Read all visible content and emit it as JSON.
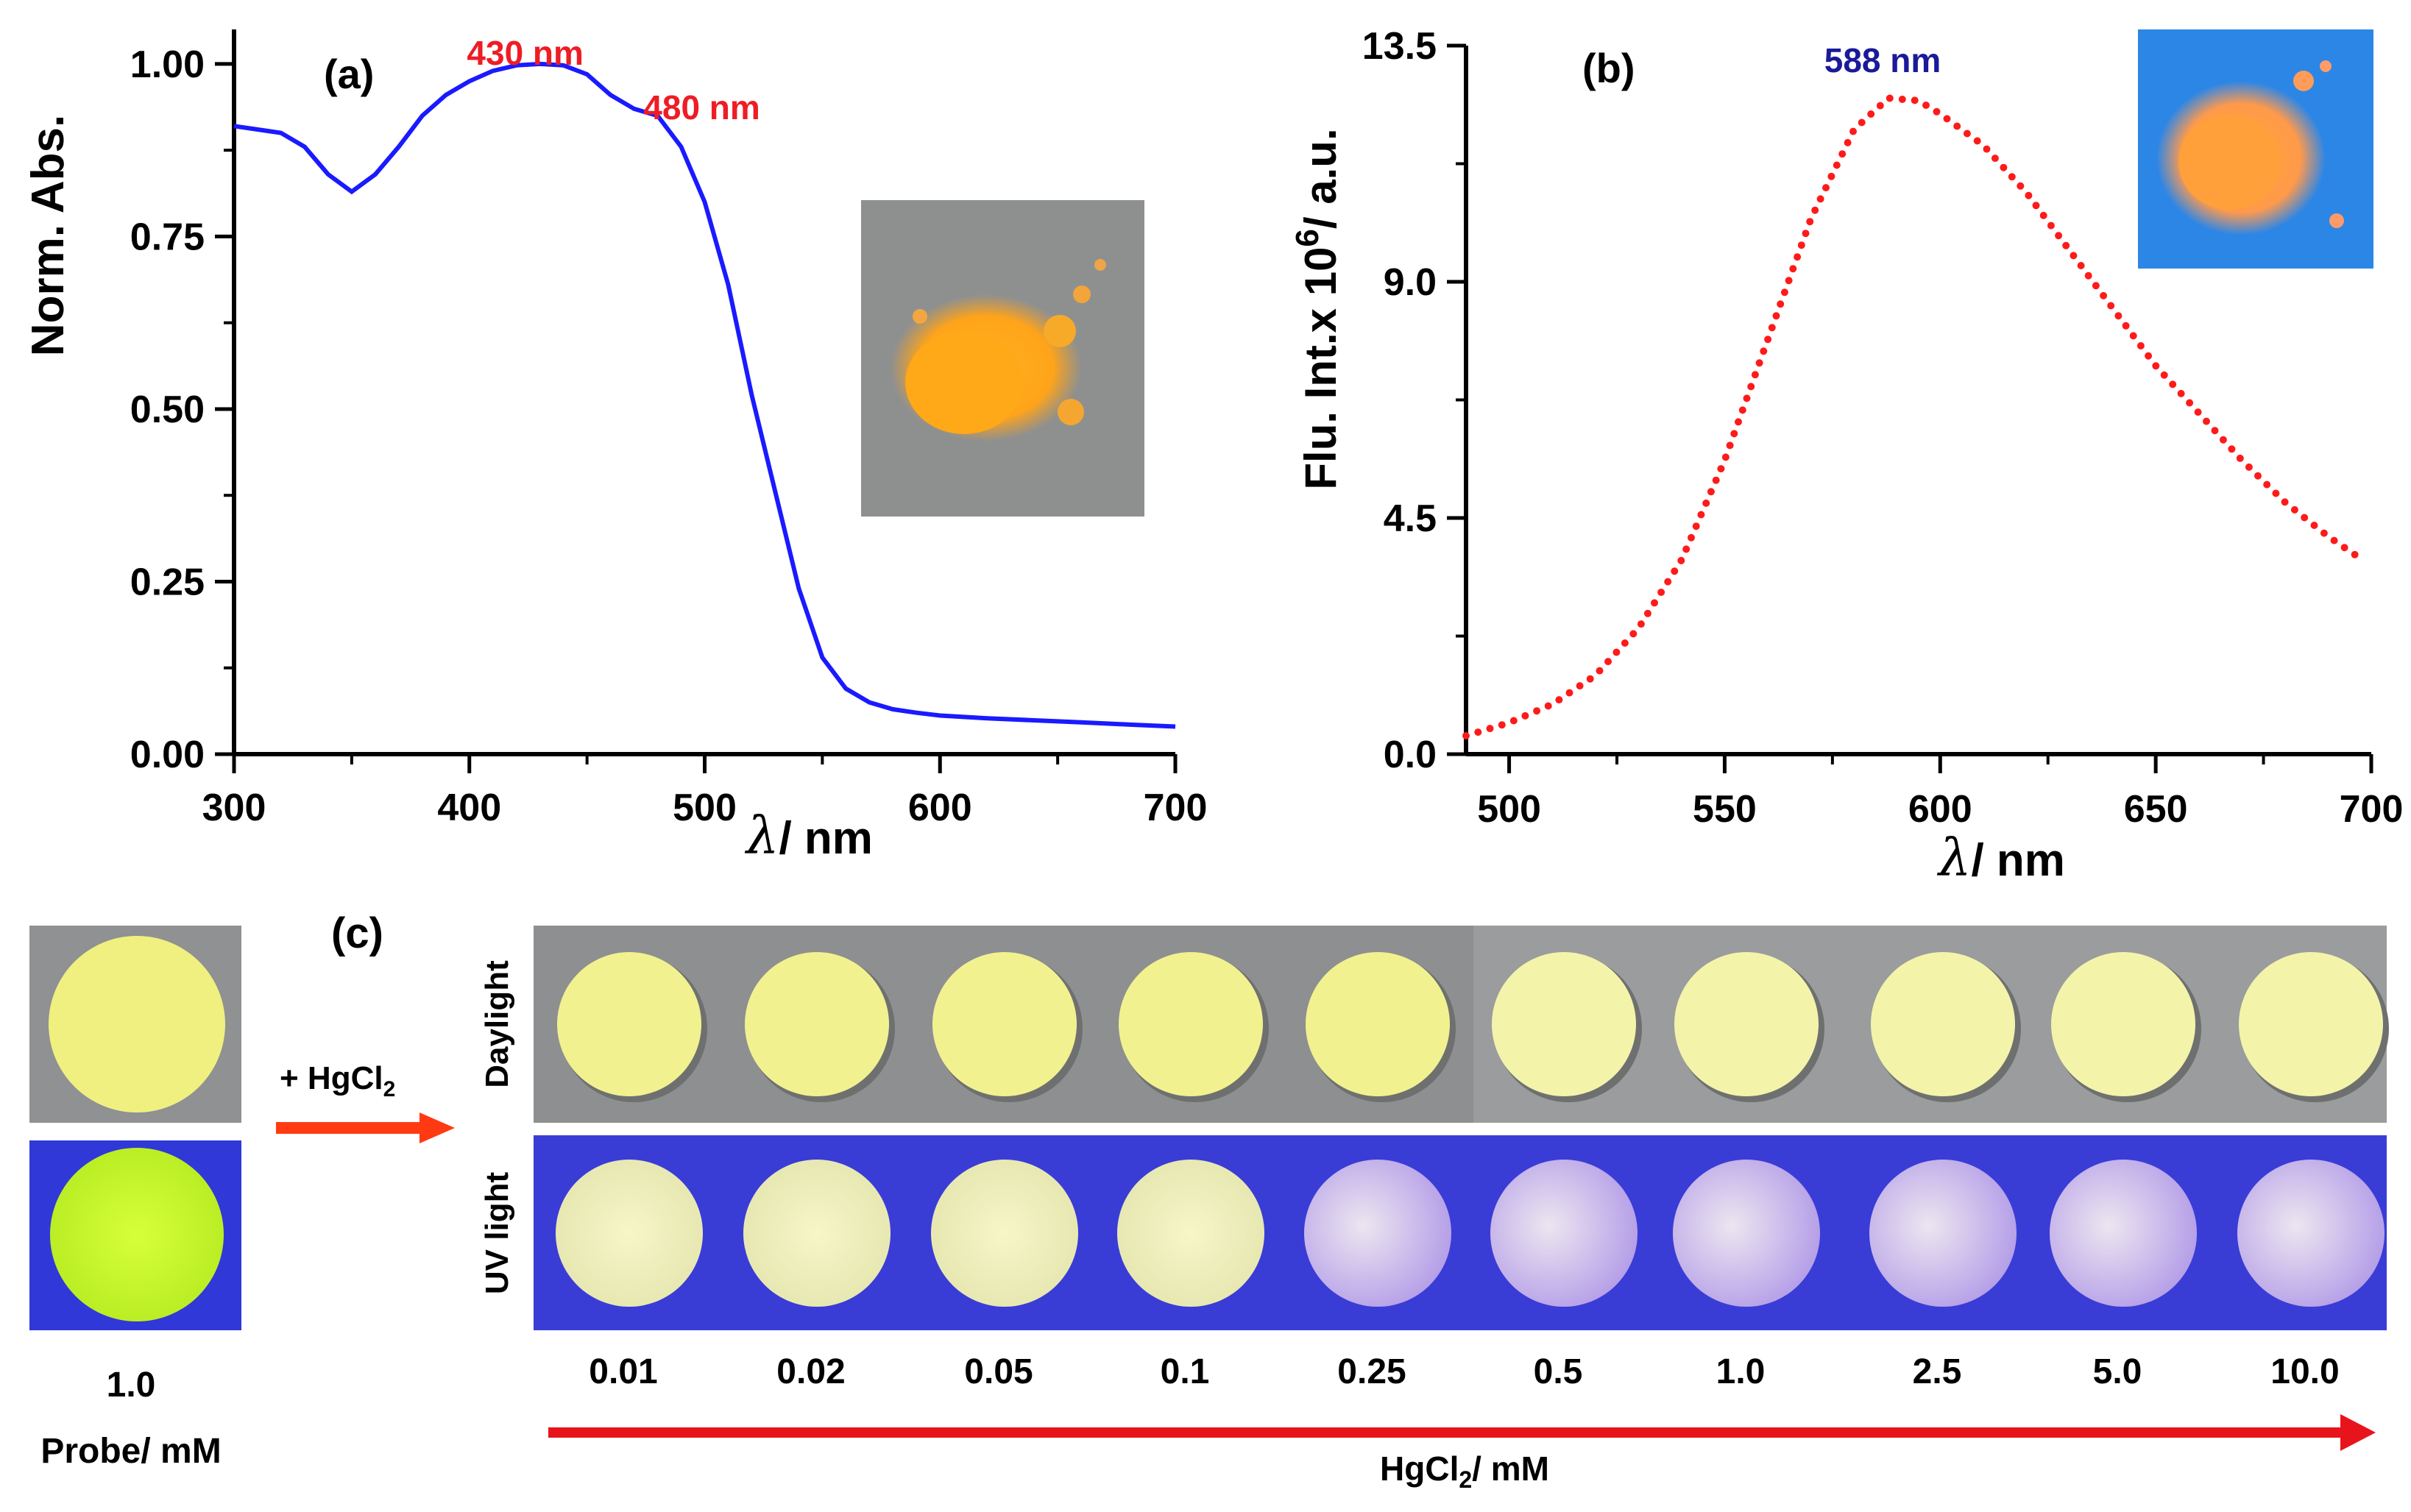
{
  "chart_data": [
    {
      "panel": "(a)",
      "type": "line",
      "xlabel_symbol": "λ",
      "xlabel_unit": "/ nm",
      "ylabel": "Norm. Abs.",
      "xlim": [
        300,
        700
      ],
      "ylim": [
        0,
        1.05
      ],
      "xticks": [
        "300",
        "400",
        "500",
        "600",
        "700"
      ],
      "yticks": [
        "0.00",
        "0.25",
        "0.50",
        "0.75",
        "1.00"
      ],
      "annotations": [
        {
          "text": "430 nm",
          "x": 430,
          "y": 1.0,
          "color": "#ee1c25"
        },
        {
          "text": "480 nm",
          "x": 480,
          "y": 0.92,
          "color": "#ee1c25"
        }
      ],
      "series": [
        {
          "name": "absorbance",
          "color": "#1a1aff",
          "x": [
            300,
            310,
            320,
            330,
            340,
            350,
            360,
            370,
            380,
            390,
            400,
            410,
            420,
            430,
            440,
            450,
            460,
            470,
            480,
            490,
            500,
            510,
            520,
            530,
            540,
            550,
            560,
            570,
            580,
            590,
            600,
            620,
            640,
            660,
            680,
            700
          ],
          "y": [
            0.91,
            0.905,
            0.9,
            0.88,
            0.84,
            0.815,
            0.84,
            0.88,
            0.925,
            0.955,
            0.975,
            0.99,
            0.998,
            1.0,
            0.998,
            0.985,
            0.955,
            0.935,
            0.925,
            0.88,
            0.8,
            0.68,
            0.52,
            0.38,
            0.24,
            0.14,
            0.095,
            0.075,
            0.065,
            0.06,
            0.056,
            0.052,
            0.049,
            0.046,
            0.043,
            0.04
          ]
        }
      ],
      "inset": "orange powder photo under daylight"
    },
    {
      "panel": "(b)",
      "type": "line",
      "xlabel_symbol": "λ",
      "xlabel_unit": "/ nm",
      "ylabel_main": "Flu. Int.x 10",
      "ylabel_sup": "6",
      "ylabel_end": "/ a.u.",
      "xlim": [
        490,
        700
      ],
      "ylim": [
        0,
        13.5
      ],
      "xticks": [
        "500",
        "550",
        "600",
        "650",
        "700"
      ],
      "yticks": [
        "0.0",
        "4.5",
        "9.0",
        "13.5"
      ],
      "annotations": [
        {
          "text": "588 nm",
          "x": 588,
          "y": 12.5,
          "color": "#1a1a9a"
        }
      ],
      "series": [
        {
          "name": "fluorescence",
          "color": "#ff1a1a",
          "style": "dotted",
          "x": [
            490,
            500,
            510,
            520,
            530,
            540,
            550,
            560,
            570,
            580,
            588,
            595,
            600,
            610,
            620,
            630,
            640,
            650,
            660,
            670,
            680,
            690,
            698
          ],
          "y": [
            0.35,
            0.6,
            0.95,
            1.5,
            2.4,
            3.7,
            5.6,
            7.9,
            10.2,
            11.9,
            12.5,
            12.45,
            12.2,
            11.6,
            10.7,
            9.6,
            8.5,
            7.4,
            6.5,
            5.6,
            4.8,
            4.15,
            3.7
          ]
        }
      ],
      "inset": "orange fluorescent powder photo under UV light"
    }
  ],
  "panel_c": {
    "label": "(c)",
    "arrow_label_main": "+ HgCl",
    "arrow_label_sub": "2",
    "row_labels": [
      "Daylight",
      "UV light"
    ],
    "probe_value": "1.0",
    "probe_label": "Probe/ mM",
    "concentrations": [
      "0.01",
      "0.02",
      "0.05",
      "0.1",
      "0.25",
      "0.5",
      "1.0",
      "2.5",
      "5.0",
      "10.0"
    ],
    "axis_label_main": "HgCl",
    "axis_label_sub": "2",
    "axis_label_end": "/ mM",
    "colors": {
      "daylight_bg": "#8f9192",
      "uv_bg": "#3a3ad8",
      "daylight_disc": "#f2f190",
      "uv_disc_start": "#f3f3b8",
      "uv_disc_end": "#d8c6f2",
      "probe_uv_disc": "#c9f52a",
      "arrow": "#ff3a12",
      "axis_arrow": "#e8141c"
    }
  }
}
